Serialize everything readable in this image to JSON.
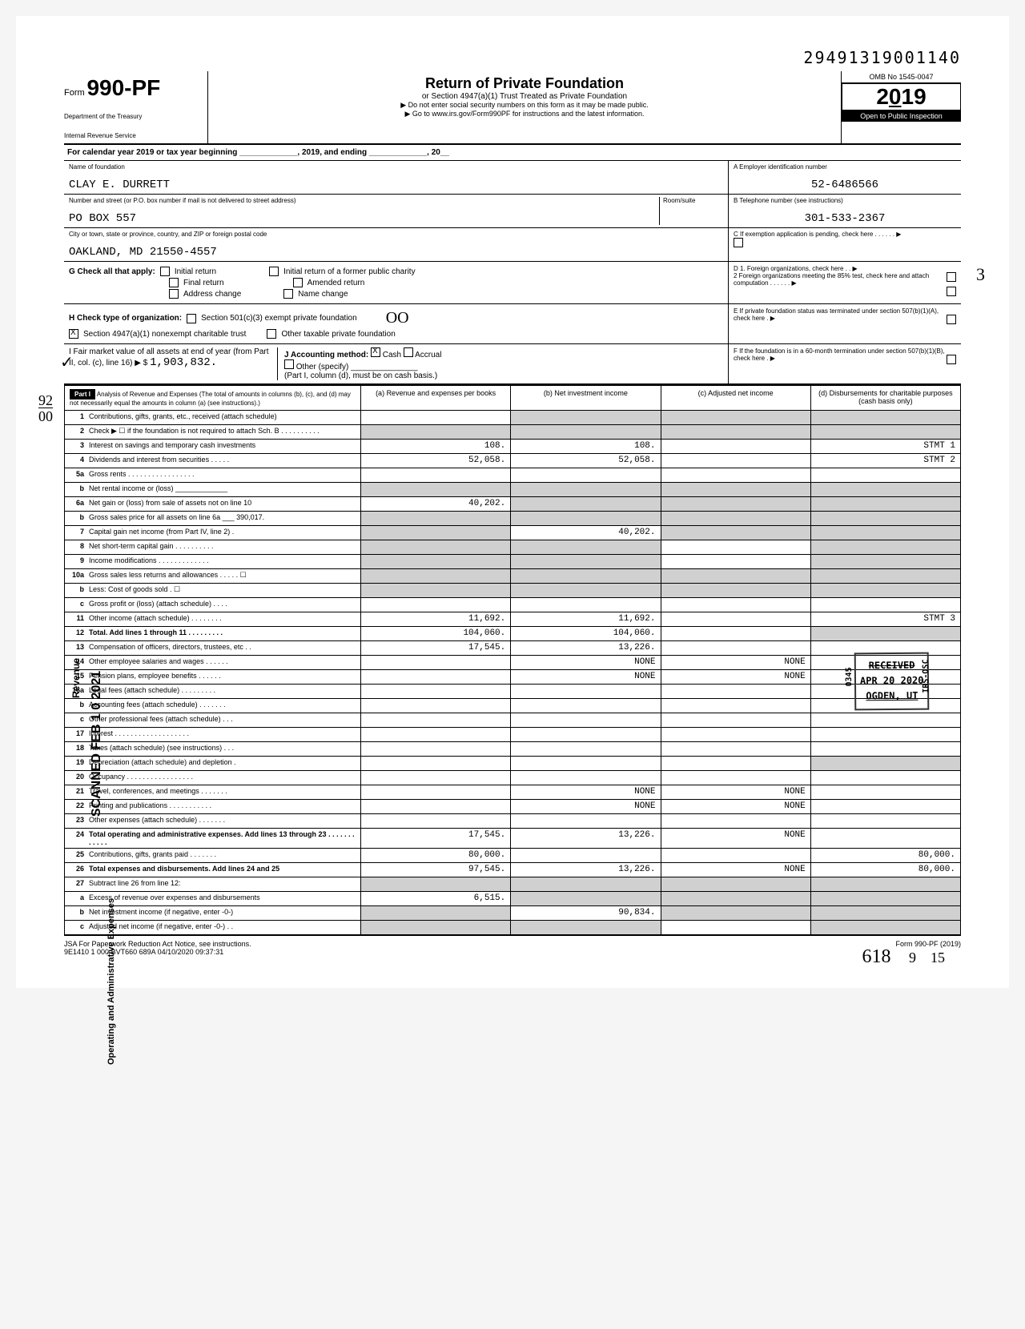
{
  "document_id": "29491319001140",
  "form": {
    "prefix": "Form",
    "number": "990-PF",
    "dept1": "Department of the Treasury",
    "dept2": "Internal Revenue Service"
  },
  "title": {
    "main": "Return of Private Foundation",
    "sub": "or Section 4947(a)(1) Trust Treated as Private Foundation",
    "warning": "▶ Do not enter social security numbers on this form as it may be made public.",
    "link": "▶ Go to www.irs.gov/Form990PF for instructions and the latest information."
  },
  "year_box": {
    "omb": "OMB No 1545-0047",
    "year": "2019",
    "inspection": "Open to Public Inspection"
  },
  "calendar": "For calendar year 2019 or tax year beginning _____________, 2019, and ending _____________, 20__",
  "foundation": {
    "name_label": "Name of foundation",
    "name": "CLAY E. DURRETT",
    "ein_label": "A  Employer identification number",
    "ein": "52-6486566",
    "street_label": "Number and street (or P.O. box number if mail is not delivered to street address)",
    "room_label": "Room/suite",
    "street": "PO BOX 557",
    "phone_label": "B  Telephone number (see instructions)",
    "phone": "301-533-2367",
    "city_label": "City or town, state or province, country, and ZIP or foreign postal code",
    "city": "OAKLAND, MD 21550-4557",
    "exemption_label": "C  If exemption application is pending, check here . . . . . . ▶"
  },
  "section_g": {
    "label": "G Check all that apply:",
    "initial": "Initial return",
    "initial_former": "Initial return of a former public charity",
    "final": "Final return",
    "amended": "Amended return",
    "address": "Address change",
    "name_change": "Name change",
    "d1": "D 1. Foreign organizations, check here . . ▶",
    "d2": "2 Foreign organizations meeting the 85% test, check here and attach computation . . . . . . ▶"
  },
  "section_h": {
    "label": "H Check type of organization:",
    "s501": "Section 501(c)(3) exempt private foundation",
    "s4947": "Section 4947(a)(1) nonexempt charitable trust",
    "other_tax": "Other taxable private foundation",
    "e_label": "E  If private foundation status was terminated under section 507(b)(1)(A), check here . ▶"
  },
  "section_i": {
    "label": "I  Fair market value of all assets at end of year (from Part II, col. (c), line 16) ▶ $",
    "value": "1,903,832.",
    "j_label": "J Accounting method:",
    "cash": "Cash",
    "accrual": "Accrual",
    "other": "Other (specify) _______________",
    "note": "(Part I, column (d), must be on cash basis.)",
    "f_label": "F  If the foundation is in a 60-month termination under section 507(b)(1)(B), check here . ▶"
  },
  "part1": {
    "header": "Part I",
    "title": "Analysis of Revenue and Expenses (The total of amounts in columns (b), (c), and (d) may not necessarily equal the amounts in column (a) (see instructions).)",
    "col_a": "(a) Revenue and expenses per books",
    "col_b": "(b) Net investment income",
    "col_c": "(c) Adjusted net income",
    "col_d": "(d) Disbursements for charitable purposes (cash basis only)"
  },
  "rows": {
    "r1": {
      "num": "1",
      "label": "Contributions, gifts, grants, etc., received (attach schedule)"
    },
    "r2": {
      "num": "2",
      "label": "Check ▶ ☐ if the foundation is not required to attach Sch. B . . . . . . . . . ."
    },
    "r3": {
      "num": "3",
      "label": "Interest on savings and temporary cash investments",
      "a": "108.",
      "b": "108.",
      "d": "STMT 1"
    },
    "r4": {
      "num": "4",
      "label": "Dividends and interest from securities . . . . .",
      "a": "52,058.",
      "b": "52,058.",
      "d": "STMT 2"
    },
    "r5a": {
      "num": "5a",
      "label": "Gross rents . . . . . . . . . . . . . . . . .",
      "d": ""
    },
    "r5b": {
      "num": "b",
      "label": "Net rental income or (loss) _____________"
    },
    "r6a": {
      "num": "6a",
      "label": "Net gain or (loss) from sale of assets not on line 10",
      "a": "40,202."
    },
    "r6b": {
      "num": "b",
      "label": "Gross sales price for all assets on line 6a ___ 390,017."
    },
    "r7": {
      "num": "7",
      "label": "Capital gain net income (from Part IV, line 2) .",
      "b": "40,202."
    },
    "r8": {
      "num": "8",
      "label": "Net short-term capital gain . . . . . . . . . ."
    },
    "r9": {
      "num": "9",
      "label": "Income modifications . . . . . . . . . . . . ."
    },
    "r10a": {
      "num": "10a",
      "label": "Gross sales less returns and allowances . . . . . ☐"
    },
    "r10b": {
      "num": "b",
      "label": "Less: Cost of goods sold . ☐"
    },
    "r10c": {
      "num": "c",
      "label": "Gross profit or (loss) (attach schedule) . . . ."
    },
    "r11": {
      "num": "11",
      "label": "Other income (attach schedule) . . . . . . . .",
      "a": "11,692.",
      "b": "11,692.",
      "d": "STMT 3"
    },
    "r12": {
      "num": "12",
      "label": "Total. Add lines 1 through 11 . . . . . . . . .",
      "a": "104,060.",
      "b": "104,060."
    },
    "r13": {
      "num": "13",
      "label": "Compensation of officers, directors, trustees, etc . .",
      "a": "17,545.",
      "b": "13,226."
    },
    "r14": {
      "num": "14",
      "label": "Other employee salaries and wages . . . . . .",
      "b": "NONE",
      "c": "NONE"
    },
    "r15": {
      "num": "15",
      "label": "Pension plans, employee benefits . . . . . .",
      "b": "NONE",
      "c": "NONE"
    },
    "r16a": {
      "num": "16a",
      "label": "Legal fees (attach schedule) . . . . . . . . ."
    },
    "r16b": {
      "num": "b",
      "label": "Accounting fees (attach schedule) . . . . . . ."
    },
    "r16c": {
      "num": "c",
      "label": "Other professional fees (attach schedule) . . ."
    },
    "r17": {
      "num": "17",
      "label": "Interest . . . . . . . . . . . . . . . . . . ."
    },
    "r18": {
      "num": "18",
      "label": "Taxes (attach schedule) (see instructions) . . ."
    },
    "r19": {
      "num": "19",
      "label": "Depreciation (attach schedule) and depletion ."
    },
    "r20": {
      "num": "20",
      "label": "Occupancy . . . . . . . . . . . . . . . . ."
    },
    "r21": {
      "num": "21",
      "label": "Travel, conferences, and meetings . . . . . . .",
      "b": "NONE",
      "c": "NONE"
    },
    "r22": {
      "num": "22",
      "label": "Printing and publications . . . . . . . . . . .",
      "b": "NONE",
      "c": "NONE"
    },
    "r23": {
      "num": "23",
      "label": "Other expenses (attach schedule) . . . . . . ."
    },
    "r24": {
      "num": "24",
      "label": "Total operating and administrative expenses. Add lines 13 through 23 . . . . . . . . . . . .",
      "a": "17,545.",
      "b": "13,226.",
      "c": "NONE"
    },
    "r25": {
      "num": "25",
      "label": "Contributions, gifts, grants paid . . . . . . .",
      "a": "80,000.",
      "d": "80,000."
    },
    "r26": {
      "num": "26",
      "label": "Total expenses and disbursements. Add lines 24 and 25",
      "a": "97,545.",
      "b": "13,226.",
      "c": "NONE",
      "d": "80,000."
    },
    "r27": {
      "num": "27",
      "label": "Subtract line 26 from line 12:"
    },
    "r27a": {
      "num": "a",
      "label": "Excess of revenue over expenses and disbursements",
      "a": "6,515."
    },
    "r27b": {
      "num": "b",
      "label": "Net investment income (if negative, enter -0-)",
      "b": "90,834."
    },
    "r27c": {
      "num": "c",
      "label": "Adjusted net income (if negative, enter -0-) . ."
    }
  },
  "stamp": {
    "received": "RECEIVED",
    "date": "APR 20 2020",
    "location": "OGDEN, UT",
    "code": "0345",
    "side": "IRS-OSC"
  },
  "footer": {
    "jsa": "JSA For Paperwork Reduction Act Notice, see instructions.",
    "code": "9E1410 1 000",
    "batch": "BVT660 689A 04/10/2020 09:37:31",
    "form": "Form 990-PF (2019)"
  },
  "handwritten": {
    "hw92": "92",
    "hw00": "00",
    "hw618": "618",
    "hw9": "9",
    "hw15": "15",
    "hw3": "3",
    "hw_oo": "OO",
    "scanned": "SCANNED  FEB 1 0 2021"
  },
  "vertical": {
    "revenue": "Revenue",
    "expenses": "Operating and Administrative Expenses"
  }
}
